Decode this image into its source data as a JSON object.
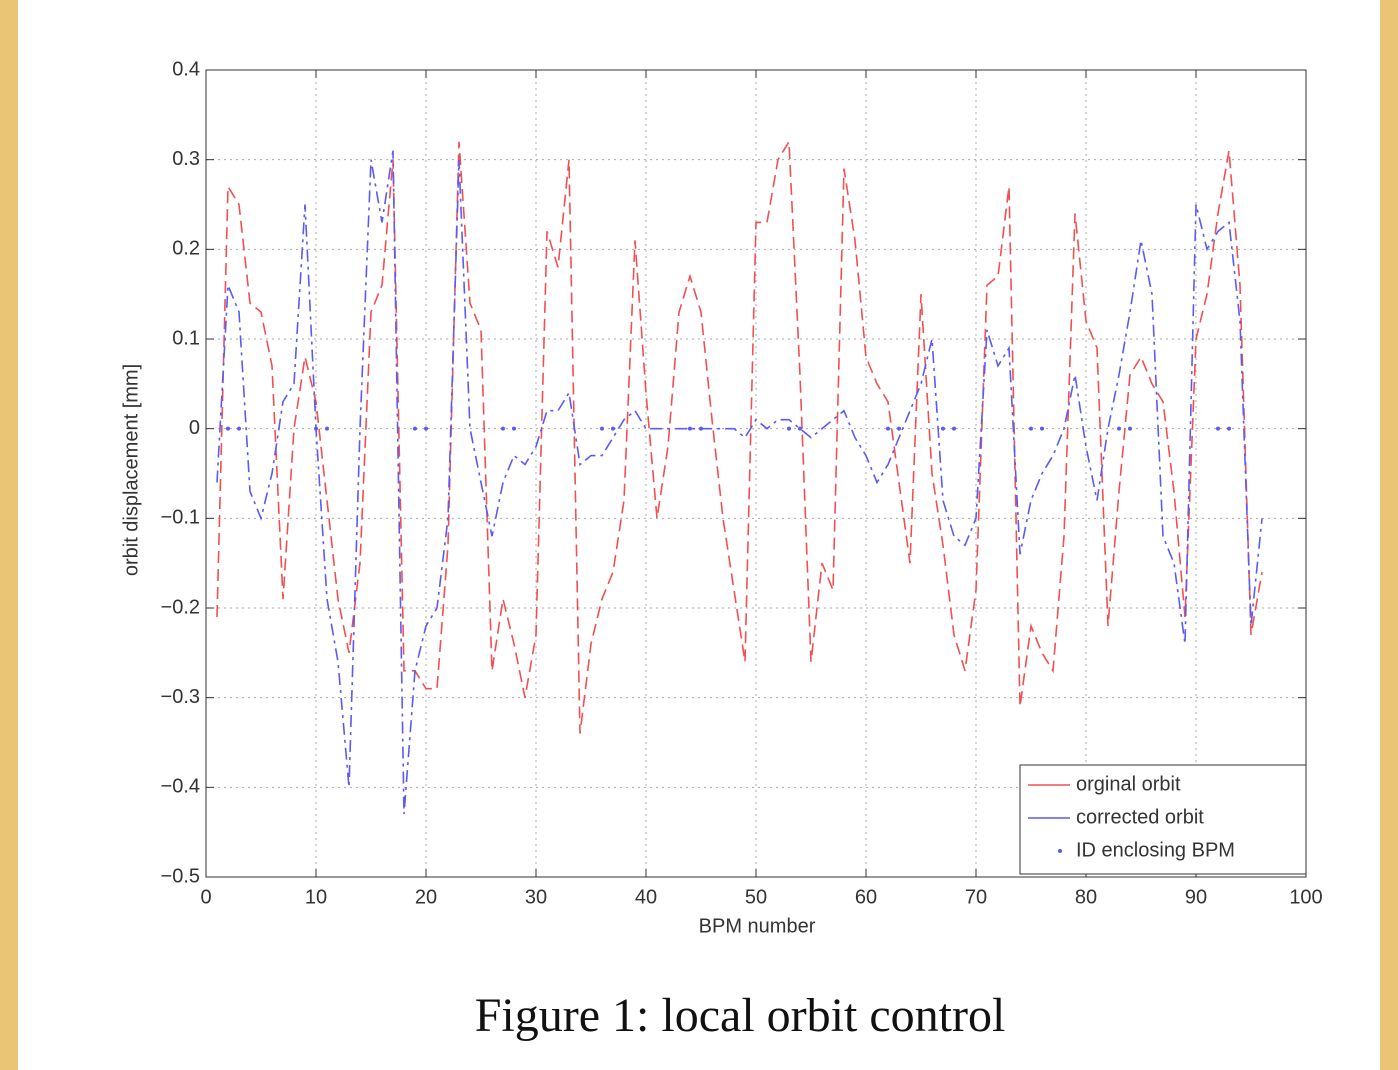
{
  "chart_data": {
    "type": "line",
    "xlabel": "BPM number",
    "ylabel": "orbit displacement [mm]",
    "xlim": [
      0,
      100
    ],
    "xticks": [
      0,
      10,
      20,
      30,
      40,
      50,
      60,
      70,
      80,
      90,
      100
    ],
    "ylim": [
      -0.5,
      0.4
    ],
    "yticks": [
      {
        "value": -0.5,
        "label": "−0.5"
      },
      {
        "value": -0.4,
        "label": "−0.4"
      },
      {
        "value": -0.3,
        "label": "−0.3"
      },
      {
        "value": -0.2,
        "label": "−0.2"
      },
      {
        "value": -0.1,
        "label": "−0.1"
      },
      0,
      0.1,
      0.2,
      0.3,
      0.4
    ],
    "grid": true,
    "legend": "lower right",
    "x": [
      1,
      2,
      3,
      4,
      5,
      6,
      7,
      8,
      9,
      10,
      11,
      12,
      13,
      14,
      15,
      16,
      17,
      18,
      19,
      20,
      21,
      22,
      23,
      24,
      25,
      26,
      27,
      28,
      29,
      30,
      31,
      32,
      33,
      34,
      35,
      36,
      37,
      38,
      39,
      40,
      41,
      42,
      43,
      44,
      45,
      46,
      47,
      48,
      49,
      50,
      51,
      52,
      53,
      54,
      55,
      56,
      57,
      58,
      59,
      60,
      61,
      62,
      63,
      64,
      65,
      66,
      67,
      68,
      69,
      70,
      71,
      72,
      73,
      74,
      75,
      76,
      77,
      78,
      79,
      80,
      81,
      82,
      83,
      84,
      85,
      86,
      87,
      88,
      89,
      90,
      91,
      92,
      93,
      94,
      95,
      96
    ],
    "series": [
      {
        "name": "orginal orbit",
        "color": "#f05050",
        "style": "dashed",
        "values": [
          -0.21,
          0.27,
          0.25,
          0.14,
          0.13,
          0.07,
          -0.19,
          0.0,
          0.08,
          0.03,
          -0.08,
          -0.19,
          -0.25,
          -0.15,
          0.13,
          0.16,
          0.3,
          -0.27,
          -0.27,
          -0.29,
          -0.29,
          -0.13,
          0.32,
          0.14,
          0.11,
          -0.27,
          -0.19,
          -0.24,
          -0.3,
          -0.23,
          0.22,
          0.18,
          0.3,
          -0.34,
          -0.24,
          -0.19,
          -0.16,
          -0.08,
          0.21,
          0.04,
          -0.1,
          -0.02,
          0.13,
          0.17,
          0.13,
          0.01,
          -0.1,
          -0.18,
          -0.26,
          0.23,
          0.23,
          0.3,
          0.32,
          0.06,
          -0.26,
          -0.15,
          -0.18,
          0.29,
          0.21,
          0.08,
          0.05,
          0.03,
          -0.06,
          -0.15,
          0.15,
          -0.05,
          -0.13,
          -0.23,
          -0.27,
          -0.18,
          0.16,
          0.17,
          0.27,
          -0.31,
          -0.22,
          -0.25,
          -0.27,
          -0.12,
          0.24,
          0.12,
          0.09,
          -0.22,
          -0.07,
          0.06,
          0.08,
          0.05,
          0.03,
          -0.07,
          -0.21,
          0.1,
          0.15,
          0.24,
          0.31,
          0.16,
          -0.23,
          -0.16
        ]
      },
      {
        "name": "corrected orbit",
        "color": "#5a5af5",
        "style": "dashdot",
        "values": [
          -0.06,
          0.16,
          0.13,
          -0.07,
          -0.1,
          -0.05,
          0.03,
          0.05,
          0.25,
          0.0,
          -0.19,
          -0.26,
          -0.4,
          0.0,
          0.3,
          0.23,
          0.31,
          -0.43,
          -0.27,
          -0.22,
          -0.2,
          -0.1,
          0.3,
          0.0,
          -0.06,
          -0.12,
          -0.06,
          -0.03,
          -0.04,
          -0.02,
          0.02,
          0.02,
          0.04,
          -0.04,
          -0.03,
          -0.03,
          -0.01,
          0.01,
          0.02,
          0.0,
          0.0,
          0.0,
          0.0,
          0.0,
          0.0,
          0.0,
          0.0,
          0.0,
          -0.01,
          0.01,
          0.0,
          0.01,
          0.01,
          0.0,
          -0.01,
          0.0,
          0.01,
          0.02,
          -0.01,
          -0.03,
          -0.06,
          -0.04,
          -0.01,
          0.02,
          0.05,
          0.1,
          -0.08,
          -0.12,
          -0.13,
          -0.1,
          0.11,
          0.07,
          0.09,
          -0.14,
          -0.08,
          -0.05,
          -0.03,
          0.0,
          0.06,
          -0.02,
          -0.08,
          0.0,
          0.06,
          0.13,
          0.21,
          0.15,
          -0.12,
          -0.15,
          -0.24,
          0.25,
          0.2,
          0.22,
          0.23,
          0.12,
          -0.22,
          -0.1
        ]
      },
      {
        "name": "ID enclosing BPM",
        "color": "#5a5af5",
        "style": "points",
        "x": [
          2,
          3,
          10,
          11,
          19,
          20,
          27,
          28,
          36,
          37,
          44,
          45,
          53,
          54,
          62,
          63,
          67,
          68,
          75,
          76,
          83,
          84,
          92,
          93
        ],
        "values": [
          0,
          0,
          0,
          0,
          0,
          0,
          0,
          0,
          0,
          0,
          0,
          0,
          0,
          0,
          0,
          0,
          0,
          0,
          0,
          0,
          0,
          0,
          0,
          0
        ]
      }
    ]
  },
  "caption": "Figure 1: local orbit control"
}
